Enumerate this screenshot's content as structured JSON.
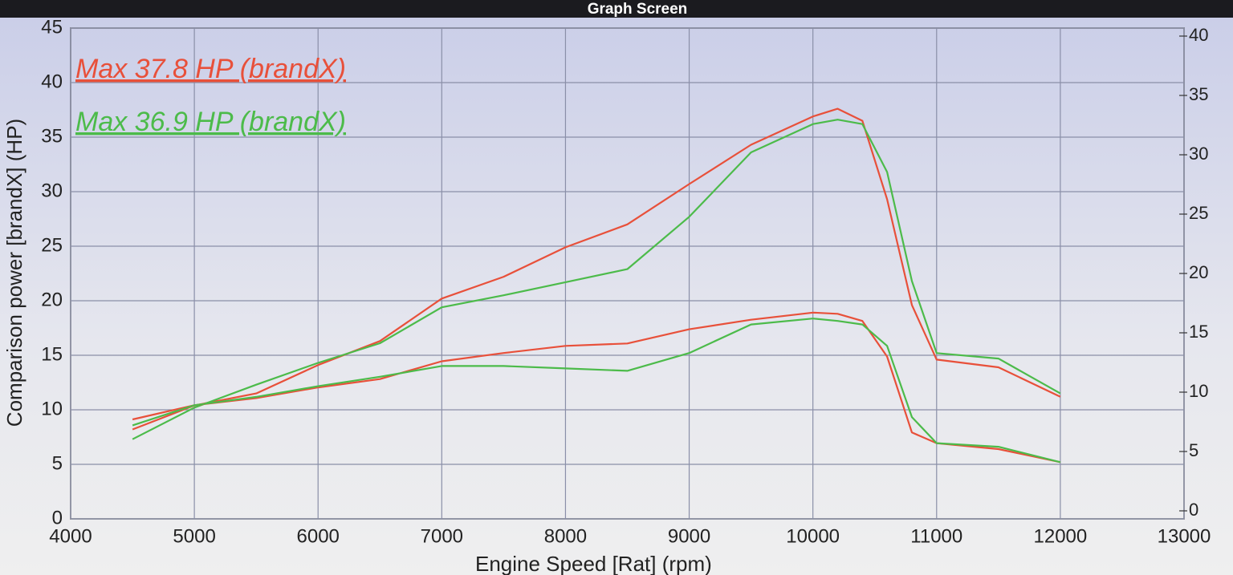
{
  "chart_data": {
    "type": "line",
    "title": "Graph Screen",
    "xlabel": "Engine Speed [Rat] (rpm)",
    "ylabel": "Comparison power [brandX] (HP)",
    "annotations": [
      {
        "text": "Max 37.8 HP (brandX)",
        "color": "#e8503a"
      },
      {
        "text": "Max 36.9 HP (brandX)",
        "color": "#4cbb4a"
      }
    ],
    "x": [
      4500,
      5000,
      5500,
      6000,
      6500,
      7000,
      7500,
      8000,
      8500,
      9000,
      9500,
      10000,
      10200,
      10400,
      10600,
      10800,
      11000,
      11500,
      12000
    ],
    "xlim": [
      4000,
      13000
    ],
    "xticks": [
      4000,
      5000,
      6000,
      7000,
      8000,
      9000,
      10000,
      11000,
      12000,
      13000
    ],
    "ylim": [
      0,
      45
    ],
    "yticks": [
      0,
      5,
      10,
      15,
      20,
      25,
      30,
      35,
      40,
      45
    ],
    "y2lim": [
      0,
      40
    ],
    "y2ticks": [
      0,
      5,
      10,
      15,
      20,
      25,
      30,
      35,
      40
    ],
    "grid": true,
    "series": [
      {
        "color": "#e8503a",
        "values": [
          8.2,
          10.4,
          11.5,
          14.1,
          16.3,
          20.2,
          22.2,
          24.9,
          27.0,
          30.7,
          34.3,
          36.9,
          37.6,
          36.5,
          29.3,
          19.6,
          14.6,
          13.9,
          11.2
        ]
      },
      {
        "color": "#4cbb4a",
        "values": [
          7.3,
          10.2,
          12.3,
          14.3,
          16.1,
          19.4,
          20.5,
          21.7,
          22.9,
          27.7,
          33.6,
          36.2,
          36.6,
          36.2,
          31.8,
          21.8,
          15.2,
          14.7,
          11.5
        ]
      },
      {
        "color": "#e8503a",
        "axis": "y2",
        "values": [
          7.7,
          8.9,
          9.5,
          10.4,
          11.1,
          12.6,
          13.3,
          13.9,
          14.1,
          15.3,
          16.1,
          16.7,
          16.6,
          16.0,
          13.0,
          6.6,
          5.7,
          5.2,
          4.1
        ]
      },
      {
        "color": "#4cbb4a",
        "axis": "y2",
        "values": [
          7.2,
          8.9,
          9.6,
          10.5,
          11.3,
          12.2,
          12.2,
          12.0,
          11.8,
          13.3,
          15.7,
          16.2,
          16.0,
          15.7,
          13.9,
          7.9,
          5.7,
          5.4,
          4.1
        ]
      }
    ]
  }
}
